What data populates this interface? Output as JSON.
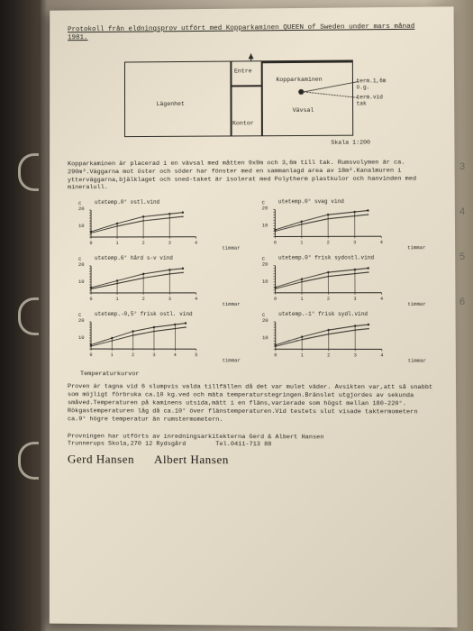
{
  "title": "Protokoll från eldningsprov utfört med Kopparkaminen QUEEN of Sweden under mars månad 1981.",
  "plan": {
    "rooms": {
      "lagenhet": "Lägenhet",
      "entre": "Entre",
      "kontor": "Kontor",
      "vavsal": "Vävsal",
      "kamin": "Kopparkaminen"
    },
    "annot1": "term.1,6m ö.g.",
    "annot2": "term.vid tak",
    "scale": "Skala 1:200"
  },
  "desc": "Kopparkaminen är placerad i en vävsal med måtten 9x9m och 3,6m till tak. Rumsvolymen är ca. 290m³.Väggarna mot öster och söder har fönster med en sammanlagd area av 18m².Kanalmuren i ytterväggarna,bjälklaget och sned-taket är isolerat med Polytherm plastkulor och hanvinden med mineralull.",
  "charts": [
    {
      "title": "utetemp.0° ostl.vind",
      "ylim": [
        0,
        20
      ],
      "ytick_step": 5,
      "xlim": [
        0,
        4
      ],
      "lines": [
        {
          "pts": [
            [
              0,
              4
            ],
            [
              1,
              10
            ],
            [
              2,
              15
            ],
            [
              3,
              17
            ],
            [
              3.5,
              18
            ]
          ],
          "color": "#2a2824"
        },
        {
          "pts": [
            [
              0,
              3
            ],
            [
              1,
              8
            ],
            [
              2,
              12
            ],
            [
              3,
              14
            ],
            [
              3.5,
              15
            ]
          ],
          "color": "#2a2824"
        }
      ]
    },
    {
      "title": "utetemp.0° svag vind",
      "ylim": [
        0,
        20
      ],
      "ytick_step": 5,
      "xlim": [
        0,
        4
      ],
      "lines": [
        {
          "pts": [
            [
              0,
              5
            ],
            [
              1,
              11
            ],
            [
              2,
              16
            ],
            [
              3,
              18
            ],
            [
              3.5,
              19
            ]
          ],
          "color": "#2a2824"
        },
        {
          "pts": [
            [
              0,
              4
            ],
            [
              1,
              9
            ],
            [
              2,
              13
            ],
            [
              3,
              15
            ],
            [
              3.5,
              16
            ]
          ],
          "color": "#2a2824"
        }
      ]
    },
    {
      "title": "utetemp.6° hård s-v vind",
      "ylim": [
        0,
        20
      ],
      "ytick_step": 5,
      "xlim": [
        0,
        4
      ],
      "lines": [
        {
          "pts": [
            [
              0,
              4
            ],
            [
              1,
              9
            ],
            [
              2,
              14
            ],
            [
              3,
              17
            ],
            [
              3.5,
              18
            ]
          ],
          "color": "#2a2824"
        },
        {
          "pts": [
            [
              0,
              3
            ],
            [
              1,
              7
            ],
            [
              2,
              11
            ],
            [
              3,
              14
            ],
            [
              3.5,
              15
            ]
          ],
          "color": "#2a2824"
        }
      ]
    },
    {
      "title": "utetemp.0° frisk sydostl.vind",
      "ylim": [
        0,
        20
      ],
      "ytick_step": 5,
      "xlim": [
        0,
        4
      ],
      "lines": [
        {
          "pts": [
            [
              0,
              4
            ],
            [
              1,
              10
            ],
            [
              2,
              15
            ],
            [
              3,
              17
            ],
            [
              3.5,
              18
            ]
          ],
          "color": "#2a2824"
        },
        {
          "pts": [
            [
              0,
              3
            ],
            [
              1,
              8
            ],
            [
              2,
              12
            ],
            [
              3,
              14
            ],
            [
              3.5,
              15
            ]
          ],
          "color": "#2a2824"
        }
      ]
    },
    {
      "title": "utetemp.-0,5° frisk ostl. vind",
      "ylim": [
        0,
        20
      ],
      "ytick_step": 5,
      "xlim": [
        0,
        5
      ],
      "lines": [
        {
          "pts": [
            [
              0,
              3
            ],
            [
              1,
              8
            ],
            [
              2,
              13
            ],
            [
              3,
              16
            ],
            [
              4,
              18
            ],
            [
              4.5,
              19
            ]
          ],
          "color": "#2a2824"
        },
        {
          "pts": [
            [
              0,
              2
            ],
            [
              1,
              6
            ],
            [
              2,
              10
            ],
            [
              3,
              13
            ],
            [
              4,
              15
            ],
            [
              4.5,
              16
            ]
          ],
          "color": "#2a2824"
        }
      ]
    },
    {
      "title": "utetemp.-1° frisk sydl.vind",
      "ylim": [
        0,
        20
      ],
      "ytick_step": 5,
      "xlim": [
        0,
        4
      ],
      "lines": [
        {
          "pts": [
            [
              0,
              3
            ],
            [
              1,
              9
            ],
            [
              2,
              14
            ],
            [
              3,
              17
            ],
            [
              3.5,
              18
            ]
          ],
          "color": "#2a2824"
        },
        {
          "pts": [
            [
              0,
              2
            ],
            [
              1,
              7
            ],
            [
              2,
              11
            ],
            [
              3,
              14
            ],
            [
              3.5,
              15
            ]
          ],
          "color": "#2a2824"
        }
      ]
    }
  ],
  "axis_c_label": "C",
  "axis_20": "20",
  "axis_10": "10",
  "axis_x_label": "timmar",
  "tempkurv": "Temperaturkurvor",
  "para2": "Proven är tagna vid 6 slumpvis valda tillfällen då det var mulet väder. Avsikten var,att så snabbt som möjligt förbruka ca.10 kg.ved och mäta temperaturstegringen.Bränslet utgjordes av sekunda småved.Temperaturen på kaminens utsida,mätt i en fläns,varierade som högst mellan 180-220°. Rökgastemperaturen låg då ca.10° över flänstemperaturen.Vid testets slut visade taktermometern ca.9° högre temperatur än rumstermometern.",
  "footer1": "Provningen har utförts av inredningsarkitekterna Gerd & Albert Hansen",
  "footer2": "Trunnerups Skola,270 12 Rydsgård",
  "footer3": "Tel.0411-713 88",
  "sig1": "Gerd Hansen",
  "sig2": "Albert Hansen",
  "tabs": [
    "3",
    "4",
    "5",
    "6"
  ]
}
